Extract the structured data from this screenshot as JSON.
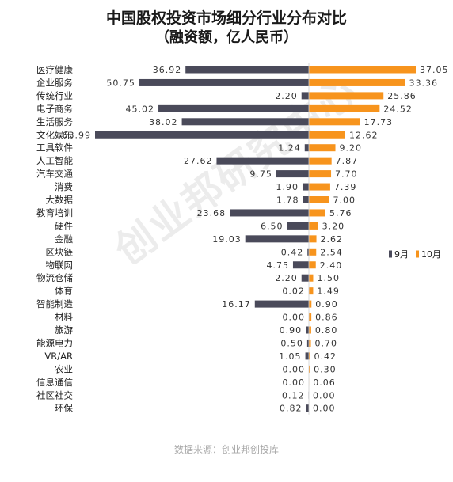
{
  "chart_data": {
    "type": "bar",
    "orientation": "horizontal-diverging",
    "title": "中国股权投资市场细分行业分布对比",
    "subtitle": "（融资额，亿人民币）",
    "categories": [
      "医疗健康",
      "企业服务",
      "传统行业",
      "电子商务",
      "生活服务",
      "文化娱乐",
      "工具软件",
      "人工智能",
      "汽车交通",
      "消费",
      "大数据",
      "教育培训",
      "硬件",
      "金融",
      "区块链",
      "物联网",
      "物流仓储",
      "体育",
      "智能制造",
      "材料",
      "旅游",
      "能源电力",
      "VR/AR",
      "农业",
      "信息通信",
      "社区社交",
      "环保"
    ],
    "series": [
      {
        "name": "9月",
        "color": "#4a4a5a",
        "direction": "left",
        "values": [
          36.92,
          50.75,
          2.2,
          45.02,
          38.02,
          63.99,
          1.24,
          27.62,
          9.75,
          1.9,
          1.78,
          23.68,
          6.5,
          19.03,
          0.42,
          4.75,
          2.2,
          0.02,
          16.17,
          0.0,
          0.9,
          0.5,
          1.05,
          0.0,
          0.0,
          0.12,
          0.82
        ]
      },
      {
        "name": "10月",
        "color": "#f7941d",
        "direction": "right",
        "values": [
          37.05,
          33.36,
          25.86,
          24.52,
          17.73,
          12.62,
          9.2,
          7.87,
          7.7,
          7.39,
          7.0,
          5.76,
          3.2,
          2.62,
          2.54,
          2.4,
          1.5,
          1.49,
          0.9,
          0.86,
          0.8,
          0.7,
          0.42,
          0.3,
          0.06,
          0.0,
          0.0
        ]
      }
    ],
    "legend_position": "right",
    "grid": false
  },
  "source": "数据来源：创业邦创投库",
  "watermark": "创业邦研究中心"
}
